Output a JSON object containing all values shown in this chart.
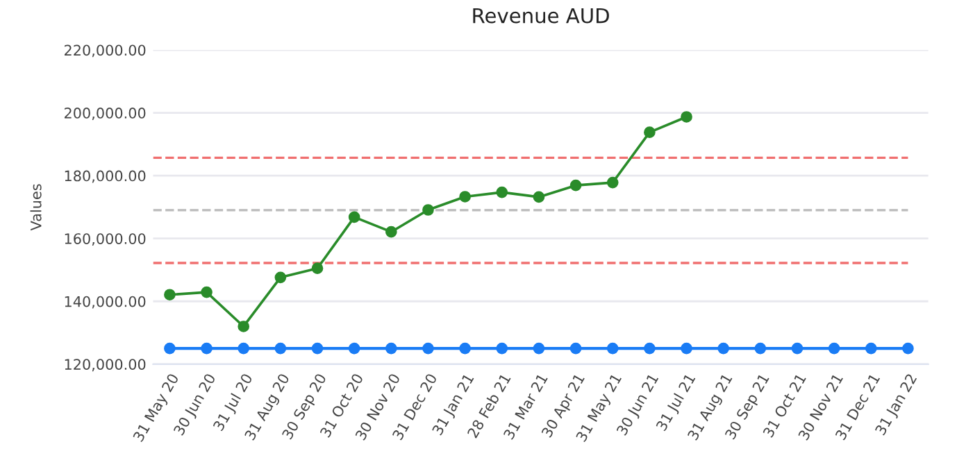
{
  "chart_data": {
    "type": "line",
    "title": "Revenue AUD",
    "ylabel": "Values",
    "categories": [
      "31 May 20",
      "30 Jun 20",
      "31 Jul 20",
      "31 Aug 20",
      "30 Sep 20",
      "31 Oct 20",
      "30 Nov 20",
      "31 Dec 20",
      "31 Jan 21",
      "28 Feb 21",
      "31 Mar 21",
      "30 Apr 21",
      "31 May 21",
      "30 Jun 21",
      "31 Jul 21",
      "31 Aug 21",
      "30 Sep 21",
      "31 Oct 21",
      "30 Nov 21",
      "31 Dec 21",
      "31 Jan 22"
    ],
    "series": [
      {
        "color": "#2a8c2a",
        "values": [
          142100,
          142900,
          132000,
          147600,
          150500,
          166800,
          162100,
          169100,
          173300,
          174700,
          173200,
          176900,
          177800,
          193800,
          198700,
          null,
          null,
          null,
          null,
          null,
          null
        ]
      },
      {
        "color": "#1a7cf5",
        "values": [
          125000,
          125000,
          125000,
          125000,
          125000,
          125000,
          125000,
          125000,
          125000,
          125000,
          125000,
          125000,
          125000,
          125000,
          125000,
          125000,
          125000,
          125000,
          125000,
          125000,
          125000
        ]
      }
    ],
    "ylim": [
      120000,
      220000
    ],
    "yticks": [
      {
        "value": 120000,
        "label": "120,000.00"
      },
      {
        "value": 140000,
        "label": "140,000.00"
      },
      {
        "value": 160000,
        "label": "160,000.00"
      },
      {
        "value": 180000,
        "label": "180,000.00"
      },
      {
        "value": 200000,
        "label": "200,000.00"
      },
      {
        "value": 220000,
        "label": "220,000.00"
      }
    ],
    "ref_lines": [
      {
        "axis": "y",
        "value": 185700,
        "color": "#f07070",
        "line_style": "dashed"
      },
      {
        "axis": "y",
        "value": 169000,
        "color": "#bbbbbb",
        "line_style": "dashed"
      },
      {
        "axis": "y",
        "value": 152200,
        "color": "#f07070",
        "line_style": "dashed"
      }
    ],
    "grid": "y",
    "marker": "circle",
    "line_style": "solid"
  }
}
